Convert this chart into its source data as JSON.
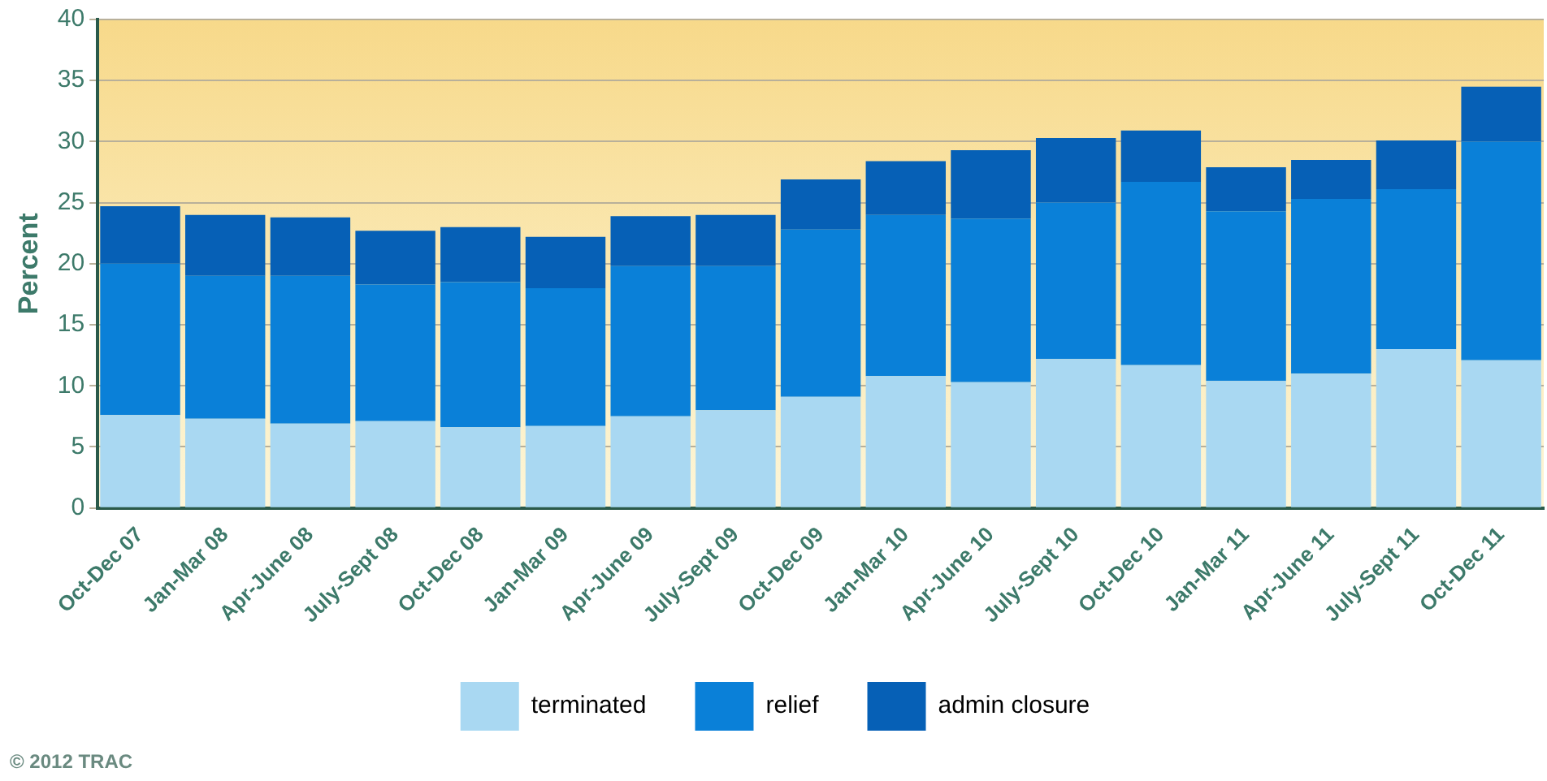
{
  "chart_data": {
    "type": "bar",
    "ylabel": "Percent",
    "stacked": true,
    "categories": [
      "Oct-Dec 07",
      "Jan-Mar 08",
      "Apr-June 08",
      "July-Sept 08",
      "Oct-Dec 08",
      "Jan-Mar 09",
      "Apr-June 09",
      "July-Sept 09",
      "Oct-Dec 09",
      "Jan-Mar 10",
      "Apr-June 10",
      "July-Sept 10",
      "Oct-Dec 10",
      "Jan-Mar 11",
      "Apr-June 11",
      "July-Sept 11",
      "Oct-Dec 11"
    ],
    "series": [
      {
        "name": "terminated",
        "color": "#a9d8f2",
        "values": [
          7.6,
          7.3,
          6.9,
          7.1,
          6.6,
          6.7,
          7.5,
          8.0,
          9.1,
          10.8,
          10.3,
          12.2,
          11.7,
          10.4,
          11.0,
          13.0,
          12.1
        ]
      },
      {
        "name": "relief",
        "color": "#0a80d8",
        "values": [
          12.4,
          11.7,
          12.1,
          11.2,
          11.9,
          11.3,
          12.3,
          11.8,
          13.7,
          13.2,
          13.4,
          12.8,
          15.0,
          13.9,
          14.3,
          13.1,
          17.9
        ]
      },
      {
        "name": "admin closure",
        "color": "#0660b6",
        "values": [
          4.7,
          5.0,
          4.8,
          4.4,
          4.5,
          4.2,
          4.1,
          4.2,
          4.1,
          4.4,
          5.6,
          5.3,
          4.2,
          3.6,
          3.2,
          4.0,
          4.5
        ]
      }
    ],
    "ylim": [
      0,
      40
    ],
    "yticks": [
      0,
      5,
      10,
      15,
      20,
      25,
      30,
      35,
      40
    ],
    "grid": "y",
    "legend": "bottom",
    "annotations": [
      "© 2012 TRAC"
    ]
  }
}
